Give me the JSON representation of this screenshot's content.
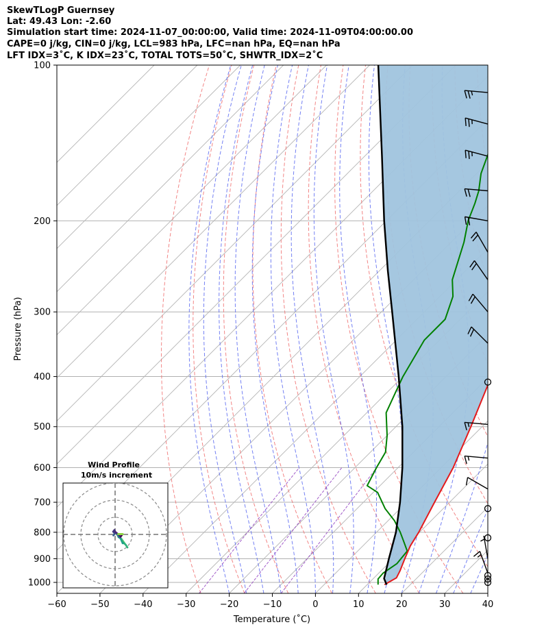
{
  "header": {
    "line1": "SkewTLogP Guernsey",
    "line2": "Lat: 49.43   Lon: -2.60",
    "line3": "Simulation start time: 2024-11-07_00:00:00, Valid time: 2024-11-09T04:00:00.00",
    "line4": "CAPE=0 j/kg, CIN=0 j/kg, LCL=983 hPa, LFC=nan hPa, EQ=nan hPa",
    "line5": "LFT IDX=3˚C, K IDX=23˚C, TOTAL TOTS=50˚C, SHWTR_IDX=2˚C"
  },
  "chart_data": {
    "type": "skew-t log-p",
    "xlabel": "Temperature (˚C)",
    "ylabel": "Pressure (hPa)",
    "xlim": [
      -60,
      40
    ],
    "ylim": [
      1050,
      100
    ],
    "x_ticks": [
      "−60",
      "−50",
      "−40",
      "−30",
      "−20",
      "−10",
      "0",
      "10",
      "20",
      "30",
      "40"
    ],
    "y_ticks": [
      "100",
      "200",
      "300",
      "400",
      "500",
      "600",
      "700",
      "800",
      "900",
      "1000"
    ],
    "colors": {
      "temperature": "#e41a1c",
      "dewpoint": "#008000",
      "parcel": "#000000",
      "shading": "#a0c4de",
      "dry_adiabat": "#f07070",
      "moist_adiabat": "#5060f0",
      "mixing_ratio": "#9040c0",
      "isotherm": "#b0b0b0"
    },
    "temperature_profile": [
      [
        1010,
        14.0
      ],
      [
        980,
        15.2
      ],
      [
        950,
        14.4
      ],
      [
        900,
        12.7
      ],
      [
        850,
        11.0
      ],
      [
        800,
        9.8
      ],
      [
        700,
        6.5
      ],
      [
        600,
        2.8
      ],
      [
        500,
        -2.6
      ],
      [
        400,
        -9.5
      ],
      [
        350,
        -14.0
      ],
      [
        300,
        -18.0
      ],
      [
        250,
        -25.5
      ],
      [
        225,
        -31.5
      ],
      [
        210,
        -33.5
      ],
      [
        185,
        -37.0
      ],
      [
        170,
        -40.0
      ],
      [
        150,
        -44.5
      ],
      [
        120,
        -50.0
      ],
      [
        100,
        -53.5
      ]
    ],
    "dewpoint_profile": [
      [
        1010,
        12.5
      ],
      [
        985,
        11.2
      ],
      [
        960,
        11.0
      ],
      [
        920,
        12.0
      ],
      [
        870,
        11.5
      ],
      [
        840,
        9.0
      ],
      [
        800,
        5.5
      ],
      [
        760,
        1.5
      ],
      [
        720,
        -3.5
      ],
      [
        670,
        -9.0
      ],
      [
        650,
        -13.0
      ],
      [
        600,
        -15.0
      ],
      [
        560,
        -16.5
      ],
      [
        520,
        -20.0
      ],
      [
        470,
        -25.5
      ],
      [
        430,
        -28.0
      ],
      [
        400,
        -30.0
      ],
      [
        340,
        -33.5
      ],
      [
        310,
        -33.5
      ],
      [
        280,
        -37.0
      ],
      [
        260,
        -41.0
      ],
      [
        220,
        -47.0
      ],
      [
        200,
        -51.0
      ],
      [
        185,
        -53.5
      ],
      [
        175,
        -55.5
      ],
      [
        162,
        -59.0
      ],
      [
        148,
        -62.0
      ],
      [
        120,
        -63.5
      ],
      [
        100,
        -66.0
      ]
    ],
    "parcel_profile": [
      [
        1010,
        14.5
      ],
      [
        983,
        12.5
      ],
      [
        900,
        9.0
      ],
      [
        800,
        4.5
      ],
      [
        700,
        -1.5
      ],
      [
        600,
        -9.0
      ],
      [
        500,
        -18.5
      ],
      [
        400,
        -31.0
      ],
      [
        300,
        -47.5
      ],
      [
        250,
        -58.0
      ],
      [
        200,
        -70.5
      ],
      [
        150,
        -86.0
      ],
      [
        100,
        -108.0
      ]
    ],
    "wind_barbs": [
      {
        "p": 1000,
        "calm": true
      },
      {
        "p": 985,
        "calm": true
      },
      {
        "p": 970,
        "calm": true
      },
      {
        "p": 960,
        "dir": 340,
        "kt": 15
      },
      {
        "p": 900,
        "dir": 350,
        "kt": 5
      },
      {
        "p": 820,
        "calm": true
      },
      {
        "p": 720,
        "calm": true
      },
      {
        "p": 660,
        "dir": 300,
        "kt": 10
      },
      {
        "p": 575,
        "dir": 275,
        "kt": 15
      },
      {
        "p": 495,
        "dir": 275,
        "kt": 15
      },
      {
        "p": 410,
        "calm": true
      },
      {
        "p": 345,
        "dir": 315,
        "kt": 20
      },
      {
        "p": 300,
        "dir": 320,
        "kt": 20
      },
      {
        "p": 260,
        "dir": 325,
        "kt": 20
      },
      {
        "p": 230,
        "dir": 330,
        "kt": 20
      },
      {
        "p": 200,
        "dir": 280,
        "kt": 20
      },
      {
        "p": 175,
        "dir": 275,
        "kt": 20
      },
      {
        "p": 150,
        "dir": 285,
        "kt": 25
      },
      {
        "p": 130,
        "dir": 285,
        "kt": 25
      },
      {
        "p": 113,
        "dir": 275,
        "kt": 25
      }
    ],
    "inset": {
      "title": "Wind Profile",
      "subtitle": "10m/s increment",
      "hodograph_uv": [
        [
          1.8,
          -1.2
        ],
        [
          3.2,
          -3.2
        ],
        [
          3.6,
          -3.8
        ],
        [
          3.1,
          -3.0
        ],
        [
          2.4,
          -2.5
        ],
        [
          2.2,
          -2.6
        ],
        [
          1.6,
          -1.2
        ],
        [
          1.0,
          -0.8
        ],
        [
          0.4,
          0.4
        ],
        [
          0.0,
          0.8
        ],
        [
          -0.4,
          1.0
        ],
        [
          -0.2,
          0.2
        ],
        [
          -0.5,
          -0.3
        ],
        [
          0.0,
          0.3
        ],
        [
          -0.6,
          0.8
        ],
        [
          -0.2,
          1.3
        ],
        [
          0.1,
          0.7
        ],
        [
          0.9,
          0.1
        ],
        [
          1.6,
          -0.7
        ],
        [
          2.2,
          0.1
        ]
      ]
    }
  }
}
